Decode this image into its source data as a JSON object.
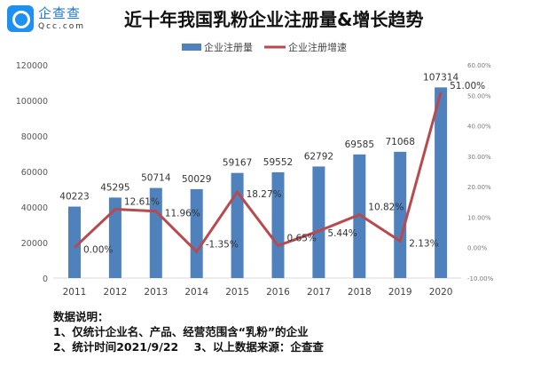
{
  "logo": {
    "cn": "企查查",
    "en": "Qcc.com"
  },
  "chart_data": {
    "type": "bar+line",
    "title": "近十年我国乳粉企业注册量&增长趋势",
    "categories": [
      "2011",
      "2012",
      "2013",
      "2014",
      "2015",
      "2016",
      "2017",
      "2018",
      "2019",
      "2020"
    ],
    "series": [
      {
        "name": "企业注册量",
        "type": "bar",
        "axis": "left",
        "color": "#4f81bd",
        "values": [
          40223,
          45295,
          50714,
          50029,
          59167,
          59552,
          62792,
          69585,
          71068,
          107314
        ],
        "labels": [
          "40223",
          "45295",
          "50714",
          "50029",
          "59167",
          "59552",
          "62792",
          "69585",
          "71068",
          "107314"
        ]
      },
      {
        "name": "企业注册增速",
        "type": "line",
        "axis": "right",
        "color": "#b84a4e",
        "values": [
          0.0,
          12.61,
          11.96,
          -1.35,
          18.27,
          0.65,
          5.44,
          10.82,
          2.13,
          51.0
        ],
        "labels": [
          "0.00%",
          "12.61%",
          "11.96%",
          "-1.35%",
          "18.27%",
          "0.65%",
          "5.44%",
          "10.82%",
          "2.13%",
          "51.00%"
        ]
      }
    ],
    "yleft": {
      "range": [
        0,
        120000
      ],
      "ticks": [
        "0",
        "20000",
        "40000",
        "60000",
        "80000",
        "100000",
        "120000"
      ]
    },
    "yright": {
      "range": [
        -10,
        60
      ],
      "ticks": [
        "-10.00%",
        "0.00%",
        "10.00%",
        "20.00%",
        "30.00%",
        "40.00%",
        "50.00%",
        "60.00%"
      ]
    },
    "legend": "top-center",
    "grid": false
  },
  "notes": {
    "heading": "数据说明：",
    "line1": "1、仅统计企业名、产品、经营范围含“乳粉”的企业",
    "line2": "2、统计时间2021/9/22    3、以上数据来源：企查查"
  }
}
